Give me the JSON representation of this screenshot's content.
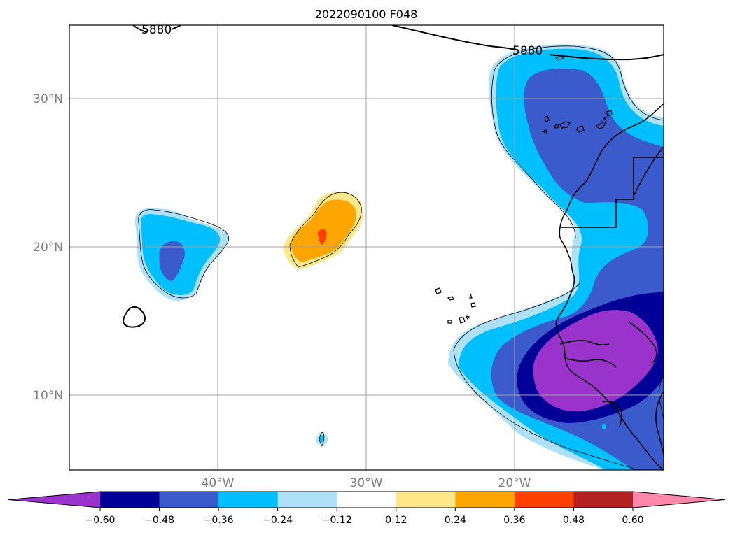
{
  "title": "2022090100 F048",
  "map": {
    "lat_labels": [
      "30°N",
      "20°N",
      "10°N"
    ],
    "lon_labels": [
      "40°W",
      "30°W",
      "20°W"
    ],
    "contour_label": "5880",
    "contour_label_2": "5880"
  },
  "colorbar": {
    "colors": [
      "#9933cc",
      "#000099",
      "#3b5bcc",
      "#00bfff",
      "#aee0f7",
      "#ffffff",
      "#ffe88c",
      "#ffa500",
      "#ff4000",
      "#b22222",
      "#ff88aa"
    ],
    "ticks": [
      "−0.60",
      "−0.48",
      "−0.36",
      "−0.24",
      "−0.12",
      "0.12",
      "0.24",
      "0.36",
      "0.48",
      "0.60"
    ]
  }
}
